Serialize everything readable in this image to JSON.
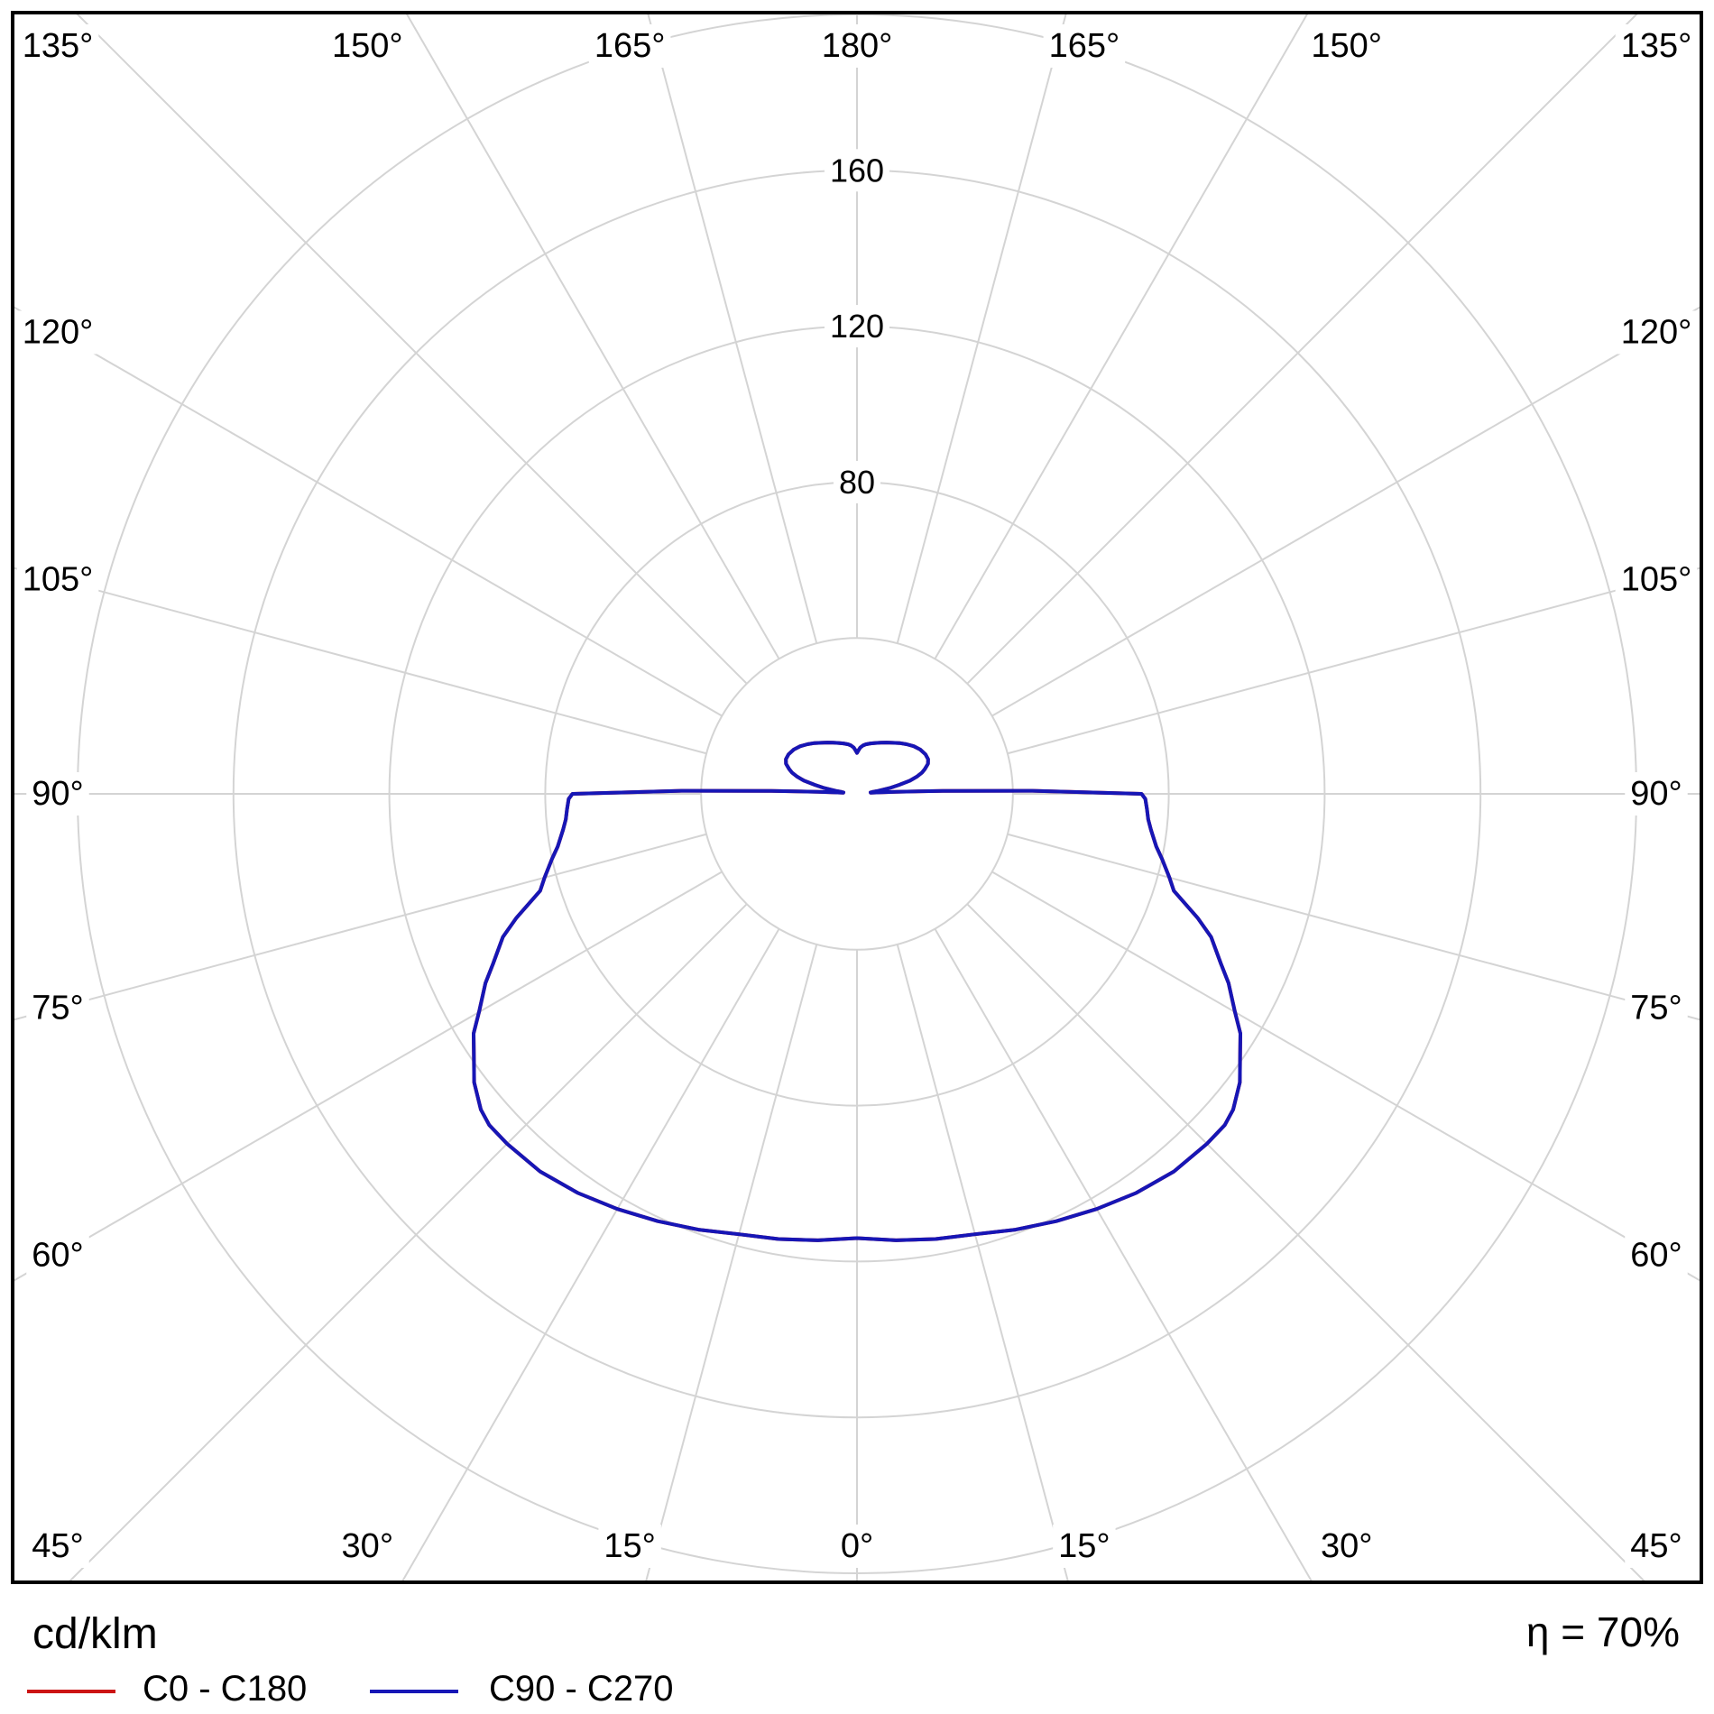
{
  "chart_data": {
    "type": "line",
    "subtype": "polar-photometric-distribution",
    "title": "",
    "units_label": "cd/klm",
    "efficiency_label": "η = 70%",
    "legend_position": "bottom",
    "axis": {
      "angular_unit": "°",
      "angular_range": [
        0,
        180
      ],
      "angular_zero_direction": "down",
      "radial_range": [
        0,
        200
      ],
      "grid": true
    },
    "spoke_step_deg": 15,
    "radial_circles": [
      40,
      80,
      120,
      160,
      200
    ],
    "radial_axis_labels": [
      {
        "value": 80,
        "label": "80"
      },
      {
        "value": 120,
        "label": "120"
      },
      {
        "value": 160,
        "label": "160"
      }
    ],
    "angle_labels": [
      {
        "deg": 0,
        "label": "0°"
      },
      {
        "deg": 15,
        "label": "15°"
      },
      {
        "deg": 30,
        "label": "30°"
      },
      {
        "deg": 45,
        "label": "45°"
      },
      {
        "deg": 60,
        "label": "60°"
      },
      {
        "deg": 75,
        "label": "75°"
      },
      {
        "deg": 90,
        "label": "90°"
      },
      {
        "deg": 105,
        "label": "105°"
      },
      {
        "deg": 120,
        "label": "120°"
      },
      {
        "deg": 135,
        "label": "135°"
      },
      {
        "deg": 150,
        "label": "150°"
      },
      {
        "deg": 165,
        "label": "165°"
      },
      {
        "deg": 180,
        "label": "180°"
      }
    ],
    "colors": {
      "grid": "#d4d4d4",
      "frame": "#000000",
      "background": "#ffffff"
    },
    "series": [
      {
        "name": "C0 - C180",
        "color": "#cc1414",
        "symmetric": true,
        "gamma": [
          0,
          5,
          10,
          15,
          20,
          25,
          30,
          35,
          40,
          45,
          48,
          50,
          53,
          55,
          58,
          60,
          63,
          65,
          68,
          70,
          73,
          75,
          78,
          80,
          83,
          85,
          87,
          89,
          90,
          91,
          92,
          93,
          94,
          95,
          96,
          97,
          98,
          100,
          102,
          104,
          106,
          108,
          110,
          113,
          116,
          120,
          125,
          130,
          135,
          140,
          145,
          150,
          155,
          160,
          165,
          170,
          173,
          176,
          178,
          180
        ],
        "values": [
          114,
          115,
          116,
          117,
          119,
          121,
          123,
          125,
          126.5,
          127,
          127,
          126,
          123,
          120,
          116,
          112,
          107,
          103,
          98,
          93,
          85,
          83,
          80,
          78,
          76,
          75,
          74.5,
          74,
          73,
          45,
          22,
          10,
          5,
          3.5,
          3.5,
          4,
          5.5,
          8.5,
          11,
          14,
          16,
          17.5,
          18.5,
          19.8,
          20.3,
          20.3,
          19.8,
          19,
          18,
          17,
          16,
          15.2,
          14.5,
          13.9,
          13.4,
          12.9,
          12.5,
          11.9,
          11.2,
          10.5
        ]
      },
      {
        "name": "C90 - C270",
        "color": "#1616b6",
        "symmetric": true,
        "gamma": [
          0,
          5,
          10,
          15,
          20,
          25,
          30,
          35,
          40,
          45,
          48,
          50,
          53,
          55,
          58,
          60,
          63,
          65,
          68,
          70,
          73,
          75,
          78,
          80,
          83,
          85,
          87,
          89,
          90,
          91,
          92,
          93,
          94,
          95,
          96,
          97,
          98,
          100,
          102,
          104,
          106,
          108,
          110,
          113,
          116,
          120,
          125,
          130,
          135,
          140,
          145,
          150,
          155,
          160,
          165,
          170,
          173,
          176,
          178,
          180
        ],
        "values": [
          114,
          115,
          116,
          117,
          119,
          121,
          123,
          125,
          126.5,
          127,
          127,
          126,
          123,
          120,
          116,
          112,
          107,
          103,
          98,
          93,
          85,
          83,
          80,
          78,
          76,
          75,
          74.5,
          74,
          73,
          45,
          22,
          10,
          5,
          3.5,
          3.5,
          4,
          5.5,
          8.5,
          11,
          14,
          16,
          17.5,
          18.5,
          19.8,
          20.3,
          20.3,
          19.8,
          19,
          18,
          17,
          16,
          15.2,
          14.5,
          13.9,
          13.4,
          12.9,
          12.5,
          11.9,
          11.2,
          10.5
        ]
      }
    ]
  }
}
